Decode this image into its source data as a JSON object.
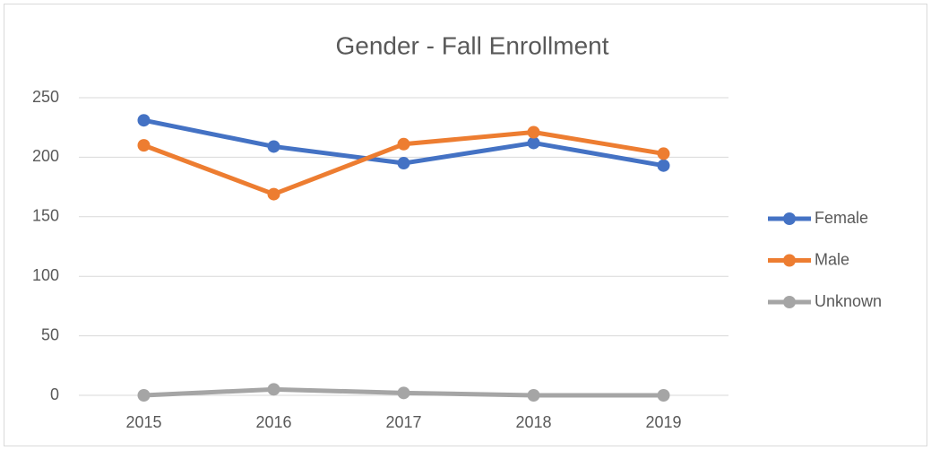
{
  "chart_data": {
    "type": "line",
    "title": "Gender - Fall Enrollment",
    "categories": [
      "2015",
      "2016",
      "2017",
      "2018",
      "2019"
    ],
    "series": [
      {
        "name": "Female",
        "color": "#4472c4",
        "values": [
          231,
          209,
          195,
          212,
          193
        ]
      },
      {
        "name": "Male",
        "color": "#ed7d31",
        "values": [
          210,
          169,
          211,
          221,
          203
        ]
      },
      {
        "name": "Unknown",
        "color": "#a5a5a5",
        "values": [
          0,
          5,
          2,
          0,
          0
        ]
      }
    ],
    "ylim": [
      0,
      250
    ],
    "yticks": [
      0,
      50,
      100,
      150,
      200,
      250
    ],
    "grid": true,
    "legend": "right"
  }
}
